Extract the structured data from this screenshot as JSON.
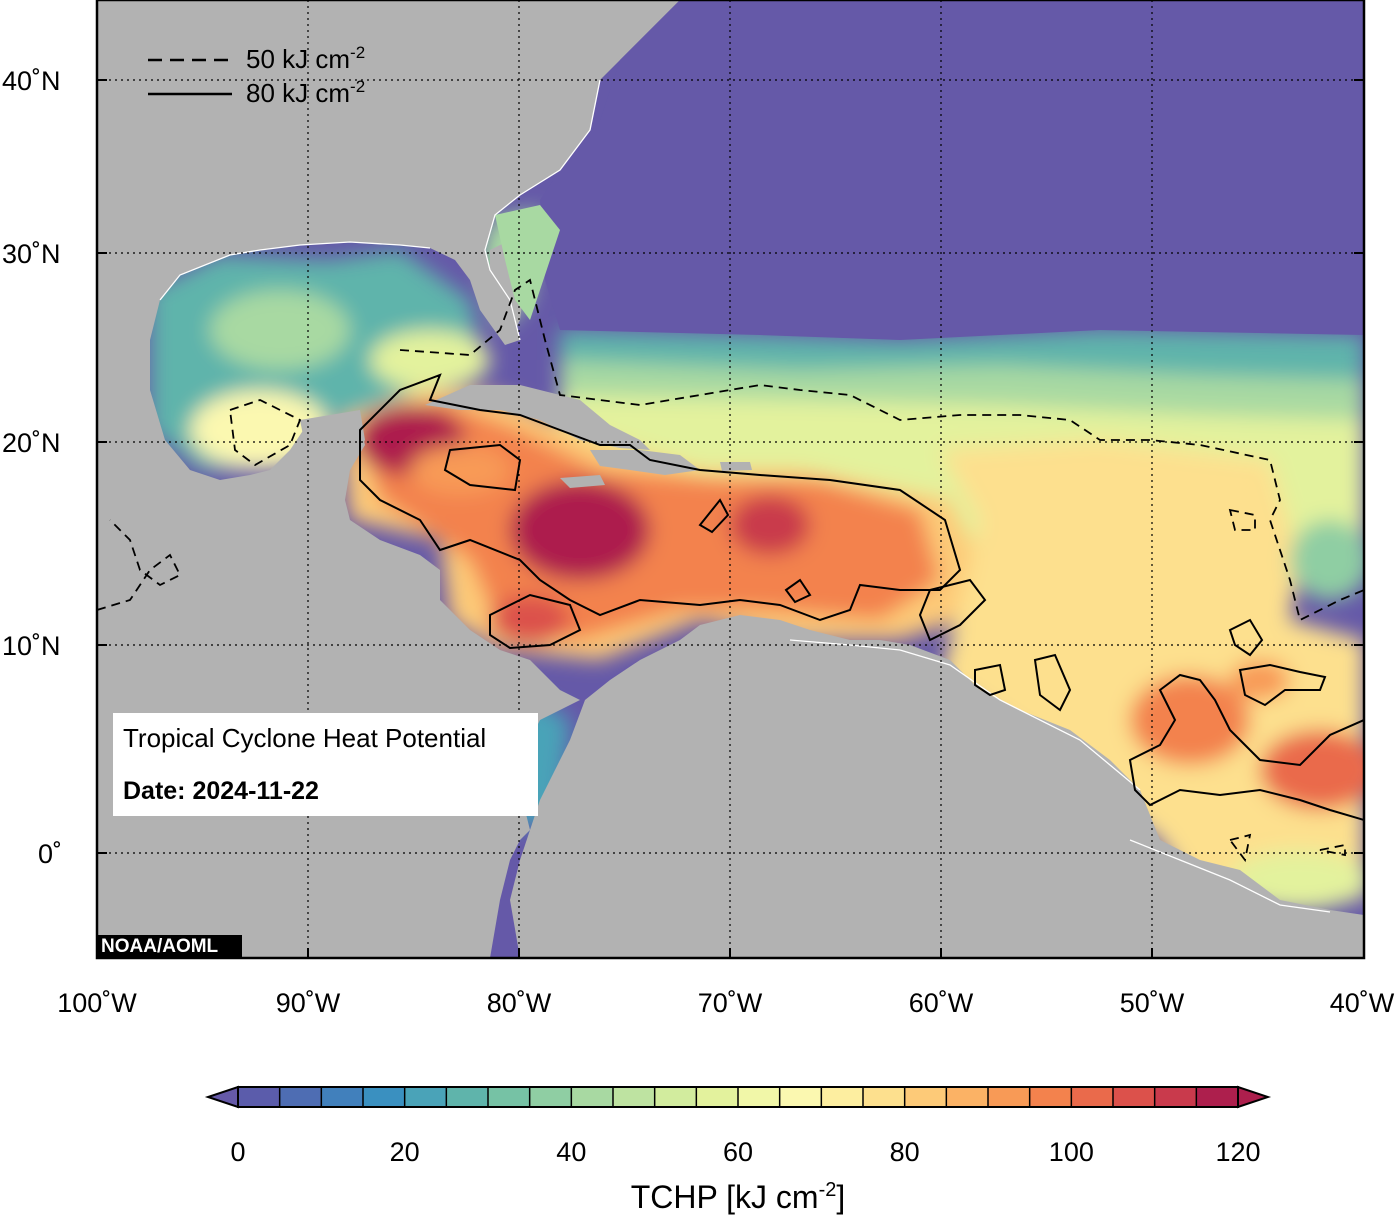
{
  "map": {
    "title": "Tropical Cyclone Heat Potential",
    "date_label": "Date: 2024-11-22",
    "credit": "NOAA/AOML",
    "lon_ticks": [
      "100˚W",
      "90˚W",
      "80˚W",
      "70˚W",
      "60˚W",
      "50˚W",
      "40˚W"
    ],
    "lat_ticks": [
      "40˚N",
      "30˚N",
      "20˚N",
      "10˚N",
      "0˚"
    ],
    "contour_legend": [
      {
        "style": "dashed",
        "value": "50",
        "unit": "kJ cm",
        "exp": "-2"
      },
      {
        "style": "solid",
        "value": "80",
        "unit": "kJ cm",
        "exp": "-2"
      }
    ],
    "colors": {
      "land": "#b2b2b2",
      "deep_ocean": "#6559a8"
    }
  },
  "colorbar": {
    "title_main": "TCHP [kJ cm",
    "title_exp": "-2",
    "title_end": "]",
    "tick_labels": [
      "0",
      "20",
      "40",
      "60",
      "80",
      "100",
      "120"
    ],
    "min": 0,
    "max": 120,
    "step": 5,
    "colors": [
      "#6559a8",
      "#5b5cab",
      "#4e6db3",
      "#4180bc",
      "#3a90c0",
      "#4aa3b8",
      "#5fb4ab",
      "#76c2a5",
      "#8fcea3",
      "#a8d9a2",
      "#bee3a1",
      "#d2ec9e",
      "#e3f29d",
      "#f1f7a8",
      "#fbf8b0",
      "#fdeea0",
      "#fde08e",
      "#fdca78",
      "#fbb265",
      "#f89a56",
      "#f3824d",
      "#ea6a4b",
      "#dc514b",
      "#c93a4c",
      "#ad1f4d"
    ]
  }
}
